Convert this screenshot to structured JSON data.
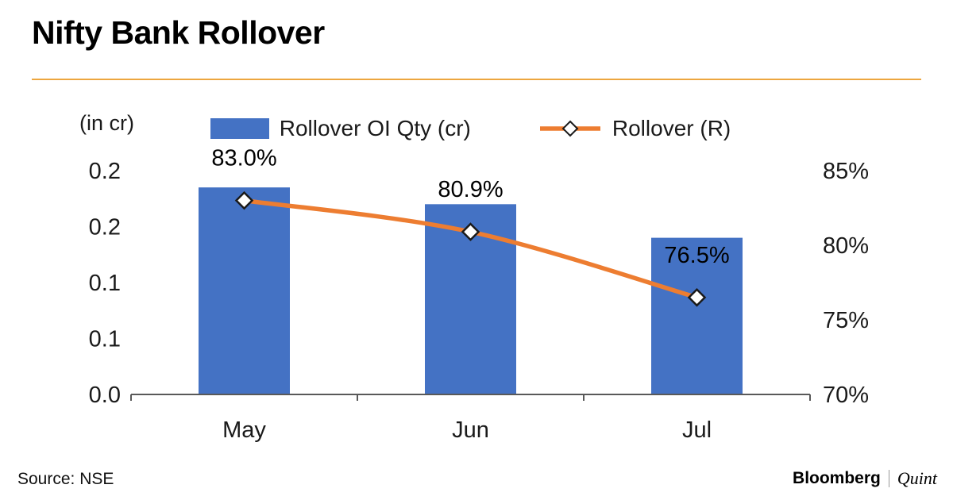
{
  "source": "Source: NSE",
  "branding": {
    "bloomberg": "Bloomberg",
    "quint": "Quint"
  },
  "colors": {
    "bar": "#4472C4",
    "line": "#ED7D31",
    "accent_rule": "#EDA63F",
    "axis": "#595959",
    "text": "#1a1a1a"
  },
  "chart_data": {
    "type": "bar+line combo",
    "title": "Nifty Bank Rollover",
    "categories": [
      "May",
      "Jun",
      "Jul"
    ],
    "series": [
      {
        "name": "Rollover OI Qty (cr)",
        "type": "bar",
        "axis": "left",
        "values": [
          0.185,
          0.17,
          0.14
        ]
      },
      {
        "name": "Rollover (R)",
        "type": "line",
        "axis": "right",
        "values": [
          83.0,
          80.9,
          76.5
        ],
        "labels": [
          "83.0%",
          "80.9%",
          "76.5%"
        ]
      }
    ],
    "left_axis": {
      "label": "(in cr)",
      "min": 0,
      "max": 0.2,
      "tick_labels_bottom_to_top": [
        "0.0",
        "0.1",
        "0.1",
        "0.2",
        "0.2"
      ]
    },
    "right_axis": {
      "min": 70,
      "max": 85,
      "tick_labels_bottom_to_top": [
        "70%",
        "75%",
        "80%",
        "85%"
      ]
    },
    "legend_position": "top",
    "grid": false
  }
}
